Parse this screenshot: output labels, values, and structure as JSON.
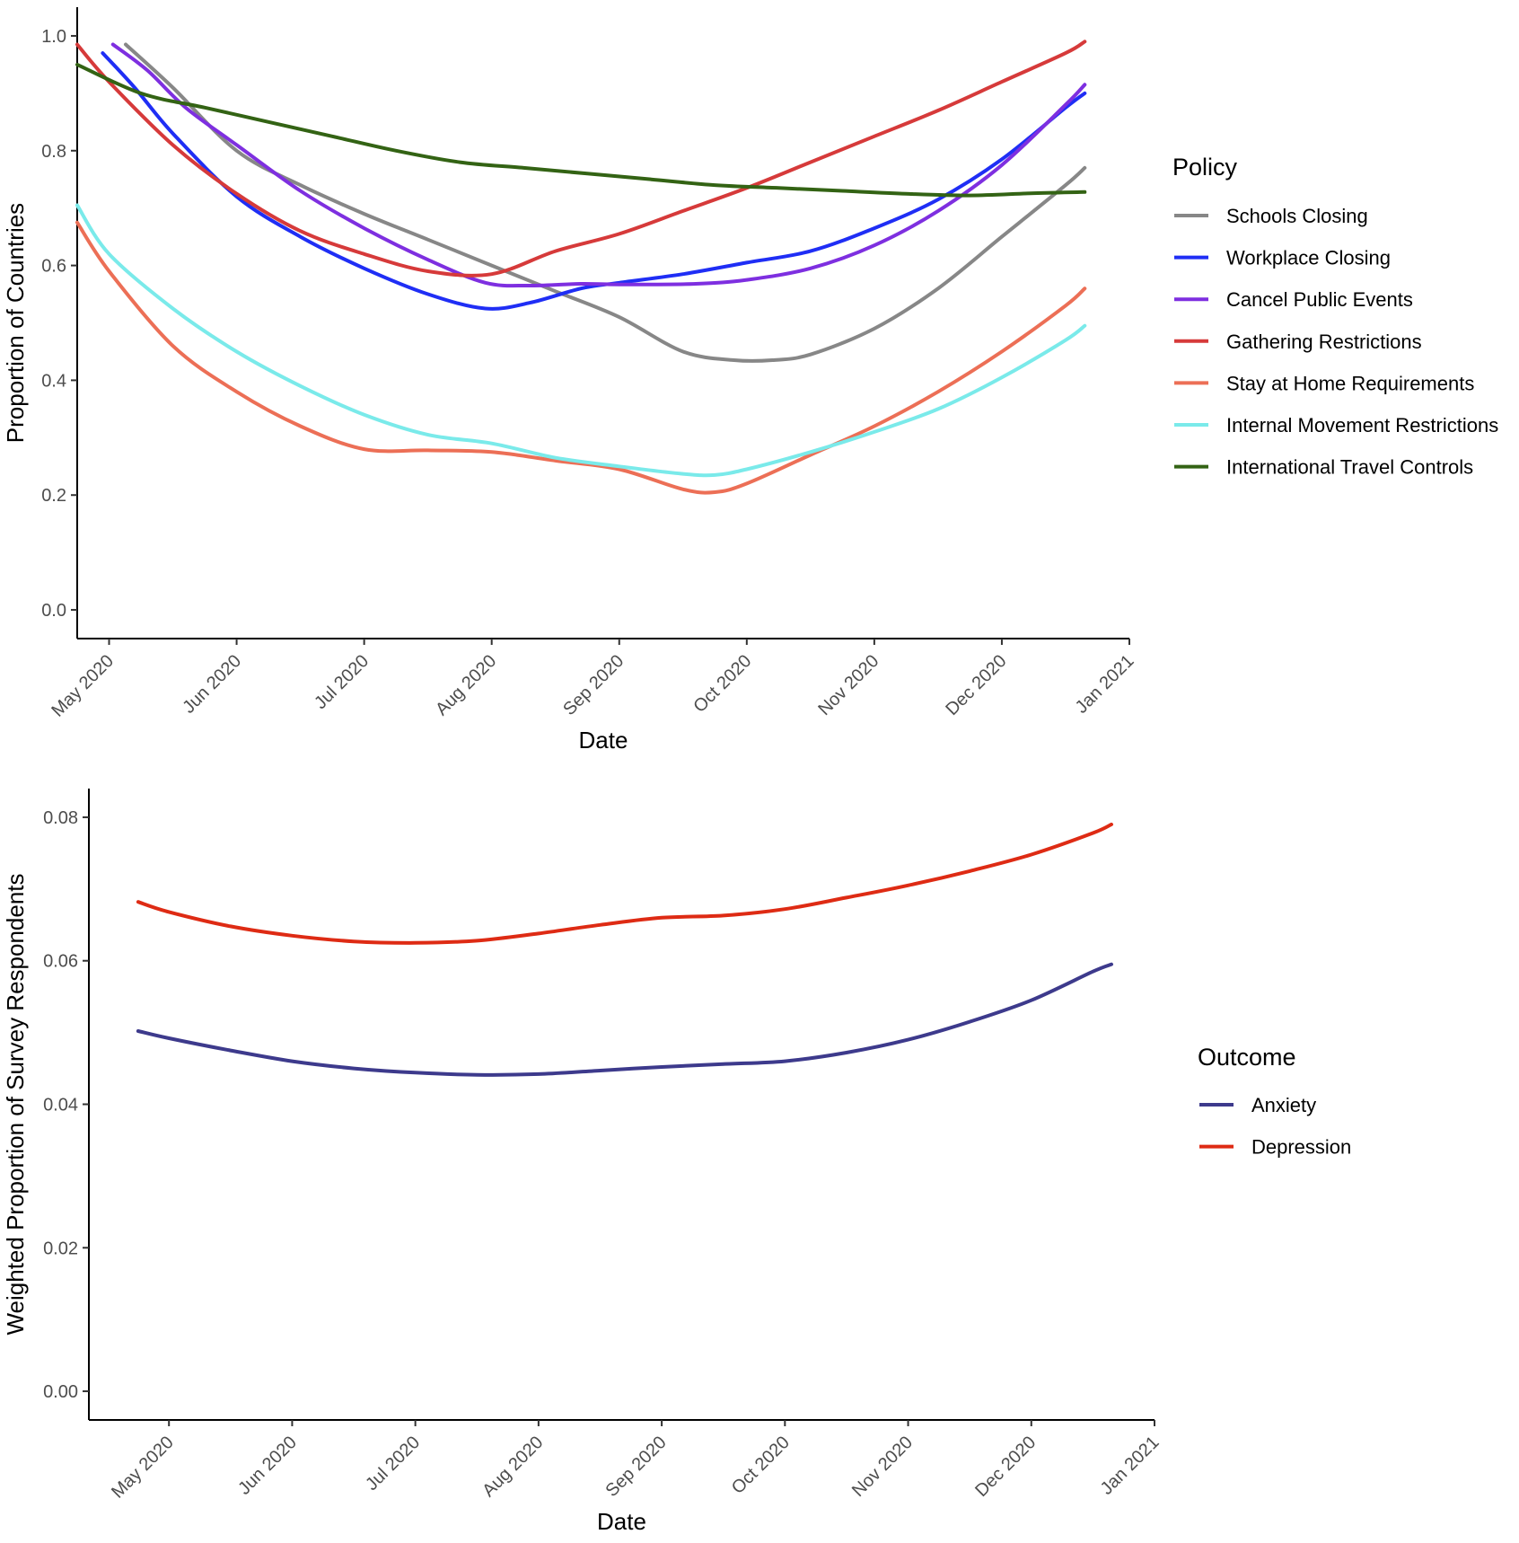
{
  "chart_data": [
    {
      "type": "line",
      "xlabel": "Date",
      "ylabel": "Proportion of Countries",
      "xlim": [
        -0.25,
        8.0
      ],
      "ylim": [
        -0.05,
        1.05
      ],
      "x_ticks": [
        0,
        1,
        2,
        3,
        4,
        5,
        6,
        7,
        8
      ],
      "x_tick_labels": [
        "May 2020",
        "Jun 2020",
        "Jul 2020",
        "Aug 2020",
        "Sep 2020",
        "Oct 2020",
        "Nov 2020",
        "Dec 2020",
        "Jan 2021"
      ],
      "y_ticks": [
        0.0,
        0.2,
        0.4,
        0.6,
        0.8,
        1.0
      ],
      "y_tick_labels": [
        "0.0",
        "0.2",
        "0.4",
        "0.6",
        "0.8",
        "1.0"
      ],
      "legend_title": "Policy",
      "series": [
        {
          "name": "Schools Closing",
          "color": "#878787",
          "x": [
            0.13,
            0.5,
            1.0,
            1.5,
            2.0,
            2.5,
            3.0,
            3.5,
            4.0,
            4.5,
            4.9,
            5.2,
            5.5,
            6.0,
            6.5,
            7.0,
            7.5,
            7.65
          ],
          "y": [
            0.985,
            0.91,
            0.8,
            0.74,
            0.69,
            0.645,
            0.6,
            0.555,
            0.51,
            0.45,
            0.435,
            0.435,
            0.445,
            0.49,
            0.56,
            0.65,
            0.74,
            0.77
          ]
        },
        {
          "name": "Workplace Closing",
          "color": "#1f2ef5",
          "x": [
            -0.05,
            0.2,
            0.5,
            1.0,
            1.5,
            2.0,
            2.5,
            2.95,
            3.3,
            3.7,
            4.0,
            4.5,
            5.0,
            5.5,
            6.0,
            6.5,
            7.0,
            7.5,
            7.65
          ],
          "y": [
            0.97,
            0.91,
            0.83,
            0.72,
            0.65,
            0.595,
            0.55,
            0.525,
            0.535,
            0.56,
            0.57,
            0.585,
            0.605,
            0.625,
            0.665,
            0.715,
            0.785,
            0.875,
            0.9
          ]
        },
        {
          "name": "Cancel Public Events",
          "color": "#7e2fe0",
          "x": [
            0.03,
            0.3,
            0.6,
            1.0,
            1.5,
            2.0,
            2.5,
            2.95,
            3.3,
            3.7,
            4.0,
            4.6,
            5.0,
            5.5,
            6.0,
            6.5,
            7.0,
            7.5,
            7.65
          ],
          "y": [
            0.985,
            0.94,
            0.875,
            0.81,
            0.73,
            0.665,
            0.61,
            0.57,
            0.565,
            0.568,
            0.567,
            0.568,
            0.575,
            0.595,
            0.635,
            0.695,
            0.775,
            0.88,
            0.915
          ]
        },
        {
          "name": "Gathering Restrictions",
          "color": "#d63a3a",
          "x": [
            -0.25,
            0.0,
            0.5,
            1.0,
            1.5,
            2.0,
            2.5,
            3.0,
            3.5,
            4.0,
            4.5,
            5.0,
            5.5,
            6.0,
            6.5,
            7.0,
            7.5,
            7.65
          ],
          "y": [
            0.985,
            0.92,
            0.81,
            0.725,
            0.66,
            0.62,
            0.59,
            0.585,
            0.625,
            0.655,
            0.695,
            0.735,
            0.78,
            0.825,
            0.87,
            0.92,
            0.97,
            0.99
          ]
        },
        {
          "name": "Stay at Home Requirements",
          "color": "#ec6f56",
          "x": [
            -0.25,
            0.0,
            0.5,
            1.0,
            1.5,
            2.0,
            2.5,
            3.0,
            3.5,
            4.0,
            4.5,
            4.75,
            5.0,
            5.5,
            6.0,
            6.5,
            7.0,
            7.5,
            7.65
          ],
          "y": [
            0.675,
            0.59,
            0.46,
            0.38,
            0.32,
            0.28,
            0.278,
            0.275,
            0.26,
            0.245,
            0.21,
            0.205,
            0.22,
            0.27,
            0.32,
            0.38,
            0.45,
            0.53,
            0.56
          ]
        },
        {
          "name": "Internal Movement Restrictions",
          "color": "#7aeaea",
          "x": [
            -0.25,
            0.0,
            0.5,
            1.0,
            1.5,
            2.0,
            2.5,
            3.0,
            3.5,
            4.0,
            4.5,
            4.75,
            5.0,
            5.5,
            6.0,
            6.5,
            7.0,
            7.5,
            7.65
          ],
          "y": [
            0.705,
            0.62,
            0.525,
            0.45,
            0.39,
            0.34,
            0.305,
            0.29,
            0.265,
            0.25,
            0.237,
            0.235,
            0.245,
            0.275,
            0.31,
            0.35,
            0.405,
            0.47,
            0.495
          ]
        },
        {
          "name": "International Travel Controls",
          "color": "#336314",
          "x": [
            -0.25,
            0.25,
            0.75,
            1.25,
            1.75,
            2.25,
            2.75,
            3.25,
            3.75,
            4.25,
            4.75,
            5.25,
            5.75,
            6.25,
            6.75,
            7.25,
            7.65
          ],
          "y": [
            0.95,
            0.9,
            0.875,
            0.85,
            0.825,
            0.8,
            0.78,
            0.77,
            0.76,
            0.75,
            0.74,
            0.735,
            0.73,
            0.725,
            0.722,
            0.726,
            0.728
          ]
        }
      ]
    },
    {
      "type": "line",
      "xlabel": "Date",
      "ylabel": "Weighted Proportion of Survey Respondents",
      "xlim": [
        -0.65,
        8.0
      ],
      "ylim": [
        -0.004,
        0.084
      ],
      "x_ticks": [
        0,
        1,
        2,
        3,
        4,
        5,
        6,
        7,
        8
      ],
      "x_tick_labels": [
        "May 2020",
        "Jun 2020",
        "Jul 2020",
        "Aug 2020",
        "Sep 2020",
        "Oct 2020",
        "Nov 2020",
        "Dec 2020",
        "Jan 2021"
      ],
      "y_ticks": [
        0.0,
        0.02,
        0.04,
        0.06,
        0.08
      ],
      "y_tick_labels": [
        "0.00",
        "0.02",
        "0.04",
        "0.06",
        "0.08"
      ],
      "legend_title": "Outcome",
      "series": [
        {
          "name": "Anxiety",
          "color": "#3d3a8c",
          "x": [
            -0.25,
            0.0,
            0.5,
            1.0,
            1.5,
            2.0,
            2.5,
            3.0,
            3.5,
            4.0,
            4.5,
            5.0,
            5.5,
            6.0,
            6.5,
            7.0,
            7.5,
            7.65
          ],
          "y": [
            0.0502,
            0.0492,
            0.0475,
            0.046,
            0.045,
            0.0444,
            0.0441,
            0.0442,
            0.0447,
            0.0452,
            0.0456,
            0.046,
            0.0472,
            0.049,
            0.0515,
            0.0545,
            0.0585,
            0.0595
          ]
        },
        {
          "name": "Depression",
          "color": "#de2b14",
          "x": [
            -0.25,
            0.0,
            0.5,
            1.0,
            1.5,
            2.0,
            2.5,
            3.0,
            3.5,
            4.0,
            4.5,
            5.0,
            5.5,
            6.0,
            6.5,
            7.0,
            7.5,
            7.65
          ],
          "y": [
            0.0682,
            0.0668,
            0.0648,
            0.0635,
            0.0627,
            0.0625,
            0.0628,
            0.0638,
            0.065,
            0.066,
            0.0663,
            0.0672,
            0.0688,
            0.0705,
            0.0725,
            0.0748,
            0.0778,
            0.079
          ]
        }
      ]
    }
  ]
}
